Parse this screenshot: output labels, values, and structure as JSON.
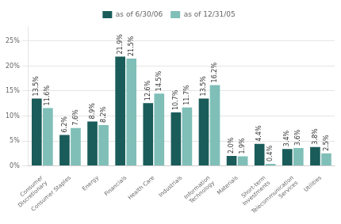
{
  "chart_data": {
    "type": "bar",
    "categories": [
      "Consumer\nDiscretionary",
      "Consumer Staples",
      "Energy",
      "Financials",
      "Health Care",
      "Industrials",
      "Information\nTechnology",
      "Materials",
      "Short-term\nInvestments",
      "Telecommunication\nServices",
      "Utilities"
    ],
    "series": [
      {
        "name": "as of 6/30/06",
        "color": "#1a5c5a",
        "values": [
          13.5,
          6.2,
          8.9,
          21.9,
          12.6,
          10.7,
          13.5,
          2.0,
          4.4,
          3.4,
          3.8
        ],
        "value_labels": [
          "13.5%",
          "6.2%",
          "8.9%",
          "21.9%",
          "12.6%",
          "10.7%",
          "13.5%",
          "2.0%",
          "4.4%",
          "3.4%",
          "3.8%"
        ]
      },
      {
        "name": "as of 12/31/05",
        "color": "#7fbfb8",
        "values": [
          11.6,
          7.6,
          8.2,
          21.5,
          14.5,
          11.7,
          16.2,
          1.9,
          0.4,
          3.6,
          2.5
        ],
        "value_labels": [
          "11.6%",
          "7.6%",
          "8.2%",
          "21.5%",
          "14.5%",
          "11.7%",
          "16.2%",
          "1.9%",
          "0.4%",
          "3.6%",
          "2.5%"
        ]
      }
    ],
    "ylim": [
      0,
      28
    ],
    "yticks": [
      {
        "value": 0,
        "label": "0%"
      },
      {
        "value": 5,
        "label": "5%"
      },
      {
        "value": 10,
        "label": "10%"
      },
      {
        "value": 15,
        "label": "15%"
      },
      {
        "value": 20,
        "label": "20%"
      },
      {
        "value": 25,
        "label": "25%"
      }
    ],
    "grid": true,
    "legend": "top",
    "data_labels": true
  }
}
